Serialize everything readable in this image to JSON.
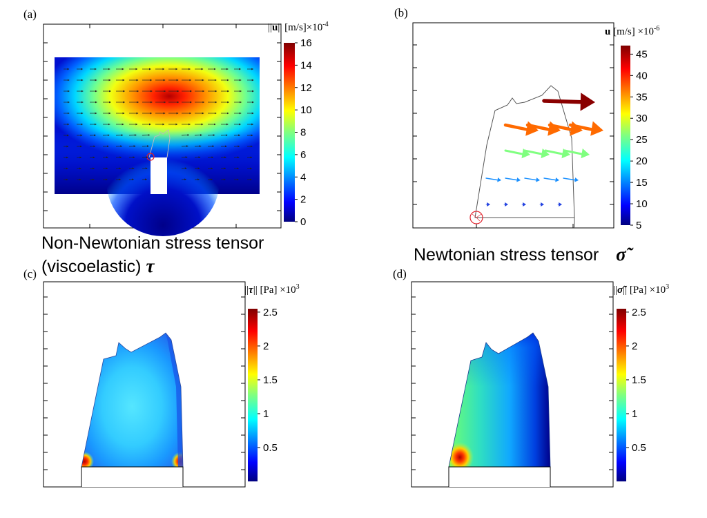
{
  "panels": {
    "a": {
      "label": "(a)",
      "colorbar": {
        "title_norm_open": "||",
        "title_symbol": "u",
        "title_norm_close": "||",
        "title_unit": "[m/s]",
        "title_scale": "×10",
        "title_exp": "-4",
        "ticks": [
          "16",
          "14",
          "12",
          "10",
          "8",
          "6",
          "4",
          "2",
          "0"
        ],
        "range": [
          0,
          16
        ]
      },
      "caption_line1": "Non-Newtonian stress tensor",
      "caption_line2": "(viscoelastic)",
      "caption_symbol": "τ"
    },
    "b": {
      "label": "(b)",
      "colorbar": {
        "title_symbol": "u",
        "title_unit": "[m/s]",
        "title_scale": "×10",
        "title_exp": "-6",
        "ticks": [
          "45",
          "40",
          "35",
          "30",
          "25",
          "20",
          "15",
          "10",
          "5"
        ],
        "range": [
          5,
          47
        ]
      },
      "caption": "Newtonian stress tensor",
      "caption_symbol": "σ̃"
    },
    "c": {
      "label": "(c)",
      "colorbar": {
        "title_norm_open": "||",
        "title_symbol": "τ",
        "title_norm_close": "||",
        "title_unit": "[Pa]",
        "title_scale": "×10",
        "title_exp": "3",
        "ticks": [
          "2.5",
          "2",
          "1.5",
          "1",
          "0.5"
        ],
        "range": [
          0,
          2.55
        ]
      }
    },
    "d": {
      "label": "(d)",
      "colorbar": {
        "title_norm_open": "||",
        "title_symbol": "σ̃",
        "title_norm_close": "||",
        "title_unit": "[Pa]",
        "title_scale": "×10",
        "title_exp": "3",
        "ticks": [
          "2.5",
          "2",
          "1.5",
          "1",
          "0.5"
        ],
        "range": [
          0,
          2.55
        ]
      }
    }
  },
  "colors": {
    "jet_dark_blue": "#00007f",
    "jet_blue": "#0000ff",
    "jet_cyan": "#00ffff",
    "jet_yellow": "#ffff00",
    "jet_red": "#ff0000",
    "jet_dark_red": "#7f0000",
    "marker_red": "#e0202a"
  }
}
